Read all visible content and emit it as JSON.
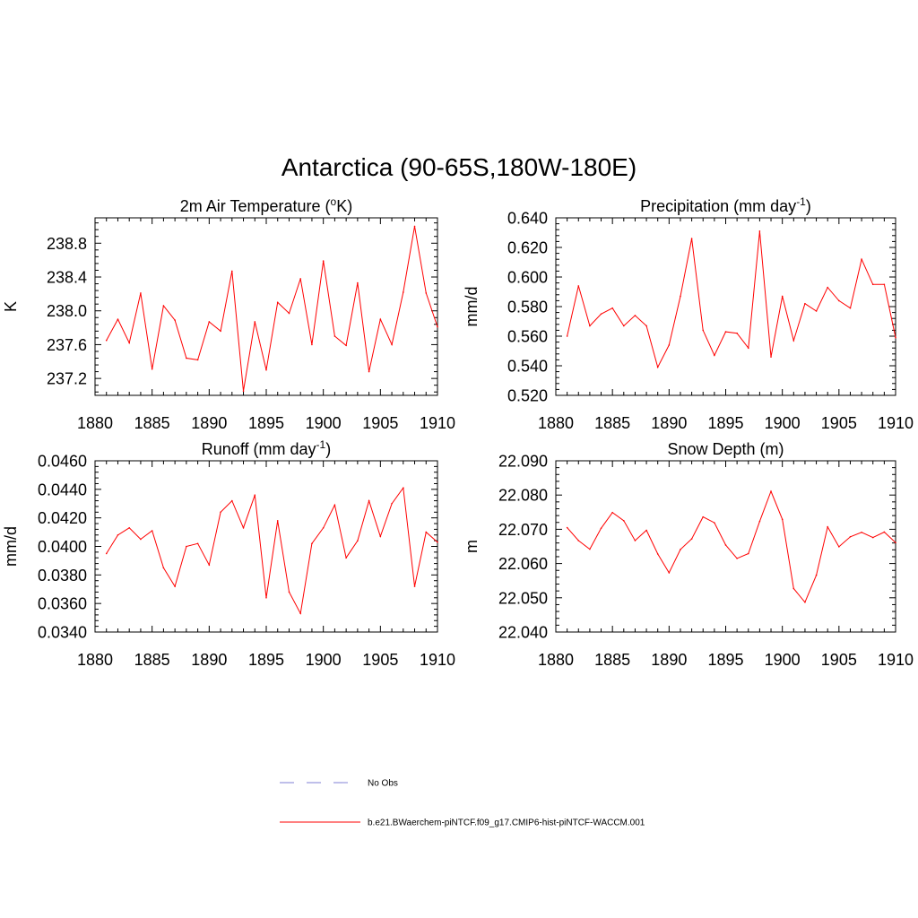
{
  "main_title": "Antarctica (90-65S,180W-180E)",
  "colors": {
    "model": "#ff0000",
    "obs": "#9999dd",
    "axis": "#000000"
  },
  "legend": [
    {
      "label": "No Obs",
      "style": "dashed",
      "color": "#9999dd"
    },
    {
      "label": "b.e21.BWaerchem-piNTCF.f09_g17.CMIP6-hist-piNTCF-WACCM.001",
      "style": "solid",
      "color": "#ff0000"
    }
  ],
  "chart_data": [
    {
      "type": "line",
      "title": "2m Air Temperature (",
      "title_sup": "o",
      "title_tail": "K)",
      "ylabel": "K",
      "xlim": [
        1880,
        1910
      ],
      "ylim": [
        237.0,
        239.1
      ],
      "xticks": [
        1880,
        1885,
        1890,
        1895,
        1900,
        1905,
        1910
      ],
      "yticks": [
        237.2,
        237.6,
        238.0,
        238.4,
        238.8
      ],
      "ytick_labels": [
        "237.2",
        "237.6",
        "238.0",
        "238.4",
        "238.8"
      ],
      "x": [
        1881,
        1882,
        1883,
        1884,
        1885,
        1886,
        1887,
        1888,
        1889,
        1890,
        1891,
        1892,
        1893,
        1894,
        1895,
        1896,
        1897,
        1898,
        1899,
        1900,
        1901,
        1902,
        1903,
        1904,
        1905,
        1906,
        1907,
        1908,
        1909,
        1910
      ],
      "series": [
        {
          "values": [
            237.65,
            237.9,
            237.62,
            238.21,
            237.31,
            238.06,
            237.89,
            237.44,
            237.42,
            237.87,
            237.76,
            238.47,
            237.05,
            237.87,
            237.3,
            238.1,
            237.97,
            238.38,
            237.6,
            238.59,
            237.7,
            237.59,
            238.33,
            237.28,
            237.9,
            237.6,
            238.22,
            239.0,
            238.21,
            237.81
          ]
        }
      ]
    },
    {
      "type": "line",
      "title": "Precipitation (mm day",
      "title_sup": "-1",
      "title_tail": ")",
      "ylabel": "mm/d",
      "xlim": [
        1880,
        1910
      ],
      "ylim": [
        0.52,
        0.64
      ],
      "xticks": [
        1880,
        1885,
        1890,
        1895,
        1900,
        1905,
        1910
      ],
      "yticks": [
        0.52,
        0.54,
        0.56,
        0.58,
        0.6,
        0.62,
        0.64
      ],
      "ytick_labels": [
        "0.520",
        "0.540",
        "0.560",
        "0.580",
        "0.600",
        "0.620",
        "0.640"
      ],
      "x": [
        1881,
        1882,
        1883,
        1884,
        1885,
        1886,
        1887,
        1888,
        1889,
        1890,
        1891,
        1892,
        1893,
        1894,
        1895,
        1896,
        1897,
        1898,
        1899,
        1900,
        1901,
        1902,
        1903,
        1904,
        1905,
        1906,
        1907,
        1908,
        1909,
        1910
      ],
      "series": [
        {
          "values": [
            0.56,
            0.594,
            0.567,
            0.575,
            0.579,
            0.567,
            0.574,
            0.567,
            0.539,
            0.554,
            0.587,
            0.626,
            0.564,
            0.547,
            0.563,
            0.562,
            0.552,
            0.631,
            0.546,
            0.587,
            0.557,
            0.582,
            0.577,
            0.593,
            0.584,
            0.579,
            0.612,
            0.595,
            0.595,
            0.559
          ]
        }
      ]
    },
    {
      "type": "line",
      "title": "Runoff (mm day",
      "title_sup": "-1",
      "title_tail": ")",
      "ylabel": "mm/d",
      "xlim": [
        1880,
        1910
      ],
      "ylim": [
        0.034,
        0.046
      ],
      "xticks": [
        1880,
        1885,
        1890,
        1895,
        1900,
        1905,
        1910
      ],
      "yticks": [
        0.034,
        0.036,
        0.038,
        0.04,
        0.042,
        0.044,
        0.046
      ],
      "ytick_labels": [
        "0.0340",
        "0.0360",
        "0.0380",
        "0.0400",
        "0.0420",
        "0.0440",
        "0.0460"
      ],
      "x": [
        1881,
        1882,
        1883,
        1884,
        1885,
        1886,
        1887,
        1888,
        1889,
        1890,
        1891,
        1892,
        1893,
        1894,
        1895,
        1896,
        1897,
        1898,
        1899,
        1900,
        1901,
        1902,
        1903,
        1904,
        1905,
        1906,
        1907,
        1908,
        1909,
        1910
      ],
      "series": [
        {
          "values": [
            0.0395,
            0.0408,
            0.0413,
            0.0405,
            0.0411,
            0.0385,
            0.0372,
            0.04,
            0.0402,
            0.0387,
            0.0424,
            0.0432,
            0.0413,
            0.0436,
            0.0364,
            0.0418,
            0.0368,
            0.0353,
            0.0402,
            0.0413,
            0.0429,
            0.0392,
            0.0404,
            0.0432,
            0.0407,
            0.043,
            0.0441,
            0.0372,
            0.041,
            0.0403
          ]
        }
      ]
    },
    {
      "type": "line",
      "title": "Snow Depth (m)",
      "title_sup": "",
      "title_tail": "",
      "ylabel": "m",
      "xlim": [
        1880,
        1910
      ],
      "ylim": [
        22.04,
        22.09
      ],
      "xticks": [
        1880,
        1885,
        1890,
        1895,
        1900,
        1905,
        1910
      ],
      "yticks": [
        22.04,
        22.05,
        22.06,
        22.07,
        22.08,
        22.09
      ],
      "ytick_labels": [
        "22.040",
        "22.050",
        "22.060",
        "22.070",
        "22.080",
        "22.090"
      ],
      "x": [
        1881,
        1882,
        1883,
        1884,
        1885,
        1886,
        1887,
        1888,
        1889,
        1890,
        1891,
        1892,
        1893,
        1894,
        1895,
        1896,
        1897,
        1898,
        1899,
        1900,
        1901,
        1902,
        1903,
        1904,
        1905,
        1906,
        1907,
        1908,
        1909,
        1910
      ],
      "series": [
        {
          "values": [
            22.0705,
            22.0667,
            22.0642,
            22.0703,
            22.0749,
            22.0725,
            22.0667,
            22.0697,
            22.0628,
            22.0573,
            22.0641,
            22.0672,
            22.0736,
            22.0719,
            22.0654,
            22.0615,
            22.0629,
            22.0723,
            22.0811,
            22.0729,
            22.0527,
            22.0487,
            22.0566,
            22.0707,
            22.0649,
            22.0678,
            22.0691,
            22.0676,
            22.0692,
            22.0661
          ]
        }
      ]
    }
  ]
}
